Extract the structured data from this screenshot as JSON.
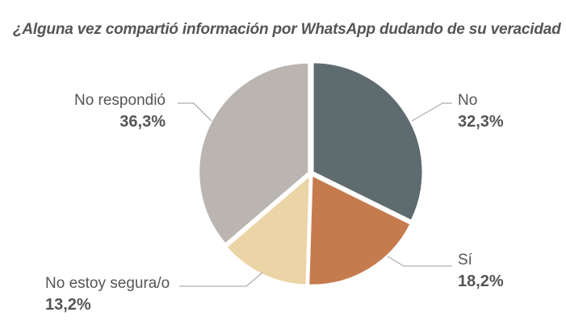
{
  "chart_data": {
    "type": "pie",
    "title": "¿Alguna vez compartió información por WhatsApp dudando de su veracidad",
    "slices": [
      {
        "label": "No",
        "value": 32.3,
        "display": "32,3%",
        "color": "#5e6b6f"
      },
      {
        "label": "Sí",
        "value": 18.2,
        "display": "18,2%",
        "color": "#c67b4f"
      },
      {
        "label": "No estoy segura/o",
        "value": 13.2,
        "display": "13,2%",
        "color": "#ebd4a5"
      },
      {
        "label": "No respondió",
        "value": 36.3,
        "display": "36,3%",
        "color": "#bab5b0"
      }
    ],
    "start": "top",
    "direction": "clockwise",
    "legend": "none"
  }
}
